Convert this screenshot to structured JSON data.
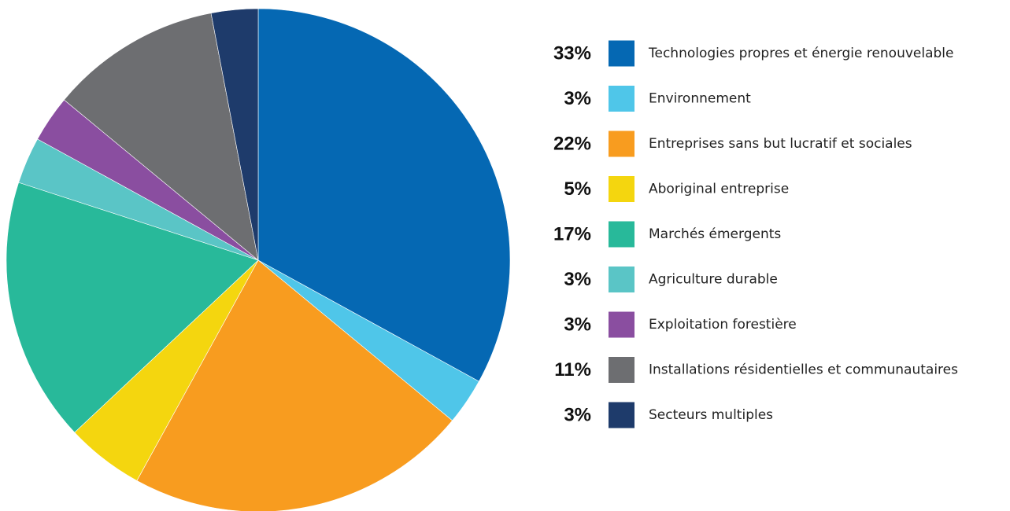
{
  "chart_data": {
    "type": "pie",
    "categories": [
      "Technologies propres et énergie renouvelable",
      "Environnement",
      "Entreprises sans but lucratif et sociales",
      "Aboriginal entreprise",
      "Marchés émergents",
      "Agriculture durable",
      "Exploitation forestière",
      "Installations résidentielles et communautaires",
      "Secteurs multiples"
    ],
    "values": [
      33,
      3,
      22,
      5,
      17,
      3,
      3,
      11,
      3
    ],
    "value_labels": [
      "33%",
      "3%",
      "22%",
      "5%",
      "17%",
      "3%",
      "3%",
      "11%",
      "3%"
    ],
    "colors": [
      "#0568b3",
      "#4fc6e9",
      "#f89c1f",
      "#f4d60f",
      "#28b99a",
      "#5ac5c6",
      "#8a4ea0",
      "#6d6e71",
      "#1e3b6b"
    ]
  }
}
